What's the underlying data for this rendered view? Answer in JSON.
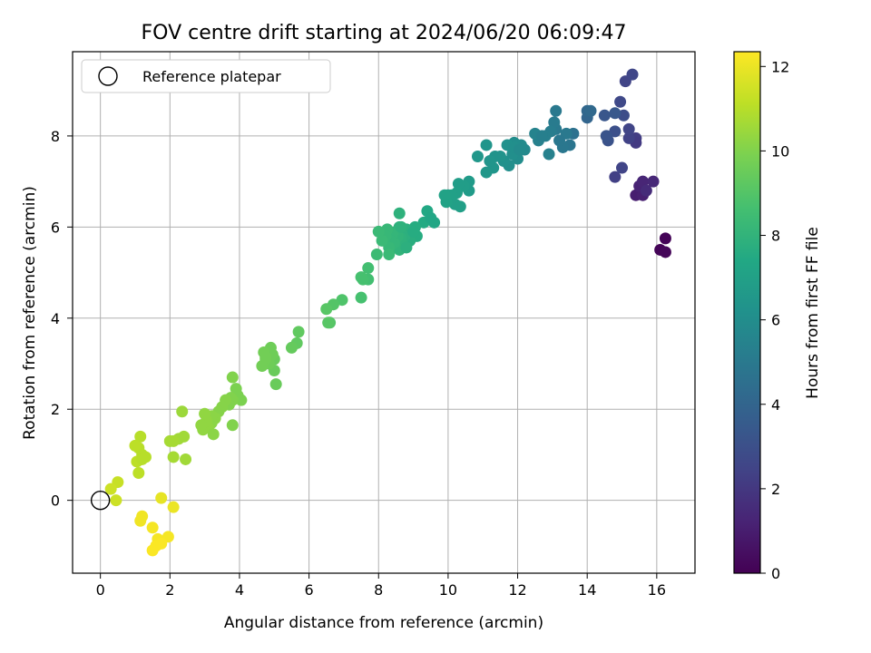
{
  "chart_data": {
    "type": "scatter",
    "title": "FOV centre drift starting at 2024/06/20 06:09:47",
    "xlabel": "Angular distance from reference (arcmin)",
    "ylabel": "Rotation from reference (arcmin)",
    "xlim": [
      -0.8,
      17.1
    ],
    "ylim": [
      -1.6,
      9.85
    ],
    "xticks": [
      0,
      2,
      4,
      6,
      8,
      10,
      12,
      14,
      16
    ],
    "yticks": [
      0,
      2,
      4,
      6,
      8
    ],
    "grid": true,
    "legend": {
      "placement": "top-left",
      "entries": [
        {
          "label": "Reference platepar",
          "marker": "open-circle"
        }
      ]
    },
    "reference_point": {
      "x": 0,
      "y": 0
    },
    "colorbar": {
      "label": "Hours from first FF file",
      "colormap": "viridis",
      "range": [
        0,
        12.35
      ],
      "ticks": [
        0,
        2,
        4,
        6,
        8,
        10,
        12
      ]
    },
    "series": [
      {
        "points": [
          {
            "x": 16.1,
            "y": 5.5,
            "c": 0.1
          },
          {
            "x": 16.25,
            "y": 5.75,
            "c": 0.1
          },
          {
            "x": 16.25,
            "y": 5.45,
            "c": 0.2
          },
          {
            "x": 15.4,
            "y": 6.7,
            "c": 1.0
          },
          {
            "x": 15.6,
            "y": 6.7,
            "c": 1.1
          },
          {
            "x": 15.5,
            "y": 6.9,
            "c": 1.2
          },
          {
            "x": 15.6,
            "y": 7.0,
            "c": 1.3
          },
          {
            "x": 15.9,
            "y": 7.0,
            "c": 1.4
          },
          {
            "x": 15.7,
            "y": 6.8,
            "c": 1.5
          },
          {
            "x": 14.8,
            "y": 7.1,
            "c": 2.3
          },
          {
            "x": 15.0,
            "y": 7.3,
            "c": 2.5
          },
          {
            "x": 15.1,
            "y": 9.2,
            "c": 2.5
          },
          {
            "x": 15.3,
            "y": 9.35,
            "c": 2.6
          },
          {
            "x": 14.95,
            "y": 8.75,
            "c": 2.7
          },
          {
            "x": 15.4,
            "y": 7.95,
            "c": 2.2
          },
          {
            "x": 15.4,
            "y": 7.85,
            "c": 2.1
          },
          {
            "x": 15.2,
            "y": 7.95,
            "c": 2.4
          },
          {
            "x": 15.2,
            "y": 8.15,
            "c": 2.5
          },
          {
            "x": 15.05,
            "y": 8.45,
            "c": 2.9
          },
          {
            "x": 14.8,
            "y": 8.1,
            "c": 3.0
          },
          {
            "x": 14.6,
            "y": 7.9,
            "c": 3.1
          },
          {
            "x": 14.55,
            "y": 8.0,
            "c": 3.2
          },
          {
            "x": 14.5,
            "y": 8.45,
            "c": 3.3
          },
          {
            "x": 14.8,
            "y": 8.5,
            "c": 3.4
          },
          {
            "x": 14.0,
            "y": 8.4,
            "c": 4.0
          },
          {
            "x": 14.0,
            "y": 8.55,
            "c": 4.1
          },
          {
            "x": 14.1,
            "y": 8.55,
            "c": 4.2
          },
          {
            "x": 13.6,
            "y": 8.05,
            "c": 4.6
          },
          {
            "x": 13.5,
            "y": 7.8,
            "c": 4.8
          },
          {
            "x": 13.3,
            "y": 7.75,
            "c": 4.9
          },
          {
            "x": 13.4,
            "y": 8.05,
            "c": 5.0
          },
          {
            "x": 13.2,
            "y": 7.9,
            "c": 4.9
          },
          {
            "x": 13.1,
            "y": 8.15,
            "c": 5.0
          },
          {
            "x": 13.05,
            "y": 8.3,
            "c": 5.1
          },
          {
            "x": 12.95,
            "y": 8.1,
            "c": 5.2
          },
          {
            "x": 13.1,
            "y": 8.55,
            "c": 5.0
          },
          {
            "x": 12.8,
            "y": 8.0,
            "c": 5.3
          },
          {
            "x": 12.6,
            "y": 7.9,
            "c": 5.4
          },
          {
            "x": 12.5,
            "y": 8.05,
            "c": 5.5
          },
          {
            "x": 12.9,
            "y": 7.6,
            "c": 5.4
          },
          {
            "x": 12.7,
            "y": 8.0,
            "c": 5.3
          },
          {
            "x": 12.2,
            "y": 7.7,
            "c": 5.8
          },
          {
            "x": 12.1,
            "y": 7.8,
            "c": 5.9
          },
          {
            "x": 12.0,
            "y": 7.5,
            "c": 6.0
          },
          {
            "x": 11.9,
            "y": 7.85,
            "c": 6.0
          },
          {
            "x": 11.85,
            "y": 7.6,
            "c": 6.1
          },
          {
            "x": 11.75,
            "y": 7.35,
            "c": 6.1
          },
          {
            "x": 11.7,
            "y": 7.8,
            "c": 6.2
          },
          {
            "x": 11.6,
            "y": 7.45,
            "c": 6.2
          },
          {
            "x": 11.5,
            "y": 7.55,
            "c": 6.3
          },
          {
            "x": 11.35,
            "y": 7.55,
            "c": 6.3
          },
          {
            "x": 11.3,
            "y": 7.3,
            "c": 6.4
          },
          {
            "x": 11.2,
            "y": 7.45,
            "c": 6.4
          },
          {
            "x": 11.1,
            "y": 7.2,
            "c": 6.5
          },
          {
            "x": 11.1,
            "y": 7.8,
            "c": 6.4
          },
          {
            "x": 10.85,
            "y": 7.55,
            "c": 6.5
          },
          {
            "x": 11.9,
            "y": 7.75,
            "c": 6.1
          },
          {
            "x": 12.05,
            "y": 7.7,
            "c": 5.9
          },
          {
            "x": 10.6,
            "y": 6.8,
            "c": 6.7
          },
          {
            "x": 10.6,
            "y": 7.0,
            "c": 6.7
          },
          {
            "x": 10.45,
            "y": 6.9,
            "c": 6.8
          },
          {
            "x": 10.3,
            "y": 6.95,
            "c": 6.8
          },
          {
            "x": 10.25,
            "y": 6.75,
            "c": 6.9
          },
          {
            "x": 10.2,
            "y": 6.5,
            "c": 6.9
          },
          {
            "x": 10.1,
            "y": 6.7,
            "c": 7.0
          },
          {
            "x": 10.0,
            "y": 6.7,
            "c": 7.0
          },
          {
            "x": 9.95,
            "y": 6.55,
            "c": 7.1
          },
          {
            "x": 9.9,
            "y": 6.7,
            "c": 7.1
          },
          {
            "x": 10.35,
            "y": 6.45,
            "c": 6.9
          },
          {
            "x": 9.6,
            "y": 6.1,
            "c": 7.3
          },
          {
            "x": 9.4,
            "y": 6.35,
            "c": 7.4
          },
          {
            "x": 9.3,
            "y": 6.1,
            "c": 7.5
          },
          {
            "x": 9.5,
            "y": 6.2,
            "c": 7.3
          },
          {
            "x": 9.1,
            "y": 5.8,
            "c": 7.6
          },
          {
            "x": 9.05,
            "y": 6.0,
            "c": 7.6
          },
          {
            "x": 8.95,
            "y": 5.85,
            "c": 7.7
          },
          {
            "x": 8.9,
            "y": 5.7,
            "c": 7.7
          },
          {
            "x": 8.8,
            "y": 5.95,
            "c": 7.8
          },
          {
            "x": 8.75,
            "y": 5.8,
            "c": 7.8
          },
          {
            "x": 8.7,
            "y": 5.6,
            "c": 7.9
          },
          {
            "x": 8.65,
            "y": 5.75,
            "c": 7.9
          },
          {
            "x": 8.6,
            "y": 6.0,
            "c": 7.8
          },
          {
            "x": 8.6,
            "y": 5.5,
            "c": 8.0
          },
          {
            "x": 8.55,
            "y": 5.8,
            "c": 8.0
          },
          {
            "x": 8.5,
            "y": 5.9,
            "c": 8.0
          },
          {
            "x": 8.45,
            "y": 5.65,
            "c": 8.1
          },
          {
            "x": 8.4,
            "y": 5.85,
            "c": 8.1
          },
          {
            "x": 8.35,
            "y": 5.7,
            "c": 8.1
          },
          {
            "x": 8.3,
            "y": 5.55,
            "c": 8.2
          },
          {
            "x": 8.25,
            "y": 5.95,
            "c": 8.2
          },
          {
            "x": 8.2,
            "y": 5.8,
            "c": 8.2
          },
          {
            "x": 8.1,
            "y": 5.7,
            "c": 8.3
          },
          {
            "x": 8.0,
            "y": 5.9,
            "c": 8.3
          },
          {
            "x": 8.3,
            "y": 5.4,
            "c": 8.3
          },
          {
            "x": 7.95,
            "y": 5.4,
            "c": 8.4
          },
          {
            "x": 8.6,
            "y": 6.3,
            "c": 7.9
          },
          {
            "x": 8.8,
            "y": 5.55,
            "c": 7.8
          },
          {
            "x": 9.0,
            "y": 5.9,
            "c": 7.6
          },
          {
            "x": 8.65,
            "y": 6.0,
            "c": 7.9
          },
          {
            "x": 7.7,
            "y": 4.85,
            "c": 8.6
          },
          {
            "x": 7.7,
            "y": 5.1,
            "c": 8.6
          },
          {
            "x": 7.55,
            "y": 4.85,
            "c": 8.7
          },
          {
            "x": 7.5,
            "y": 4.9,
            "c": 8.7
          },
          {
            "x": 7.5,
            "y": 4.45,
            "c": 8.7
          },
          {
            "x": 6.95,
            "y": 4.4,
            "c": 8.9
          },
          {
            "x": 6.7,
            "y": 4.3,
            "c": 9.0
          },
          {
            "x": 6.6,
            "y": 3.9,
            "c": 9.0
          },
          {
            "x": 6.5,
            "y": 4.2,
            "c": 9.1
          },
          {
            "x": 6.55,
            "y": 3.9,
            "c": 9.1
          },
          {
            "x": 5.7,
            "y": 3.7,
            "c": 9.3
          },
          {
            "x": 5.65,
            "y": 3.45,
            "c": 9.3
          },
          {
            "x": 5.5,
            "y": 3.35,
            "c": 9.4
          },
          {
            "x": 5.05,
            "y": 2.55,
            "c": 9.5
          },
          {
            "x": 5.0,
            "y": 2.85,
            "c": 9.5
          },
          {
            "x": 5.0,
            "y": 3.1,
            "c": 9.5
          },
          {
            "x": 4.95,
            "y": 3.2,
            "c": 9.6
          },
          {
            "x": 4.9,
            "y": 3.35,
            "c": 9.6
          },
          {
            "x": 4.85,
            "y": 3.0,
            "c": 9.6
          },
          {
            "x": 4.75,
            "y": 3.1,
            "c": 9.7
          },
          {
            "x": 4.7,
            "y": 3.25,
            "c": 9.7
          },
          {
            "x": 4.65,
            "y": 2.95,
            "c": 9.7
          },
          {
            "x": 4.75,
            "y": 3.15,
            "c": 9.7
          },
          {
            "x": 4.05,
            "y": 2.2,
            "c": 9.9
          },
          {
            "x": 3.95,
            "y": 2.3,
            "c": 9.9
          },
          {
            "x": 3.9,
            "y": 2.45,
            "c": 9.9
          },
          {
            "x": 3.8,
            "y": 2.7,
            "c": 10.0
          },
          {
            "x": 3.8,
            "y": 2.2,
            "c": 10.0
          },
          {
            "x": 3.75,
            "y": 2.25,
            "c": 10.0
          },
          {
            "x": 3.7,
            "y": 2.1,
            "c": 10.0
          },
          {
            "x": 3.6,
            "y": 2.2,
            "c": 10.1
          },
          {
            "x": 3.5,
            "y": 2.05,
            "c": 10.1
          },
          {
            "x": 3.4,
            "y": 1.95,
            "c": 10.1
          },
          {
            "x": 3.3,
            "y": 1.8,
            "c": 10.2
          },
          {
            "x": 3.2,
            "y": 1.7,
            "c": 10.2
          },
          {
            "x": 3.2,
            "y": 1.85,
            "c": 10.2
          },
          {
            "x": 3.1,
            "y": 1.6,
            "c": 10.3
          },
          {
            "x": 3.05,
            "y": 1.75,
            "c": 10.3
          },
          {
            "x": 3.0,
            "y": 1.9,
            "c": 10.3
          },
          {
            "x": 2.95,
            "y": 1.55,
            "c": 10.3
          },
          {
            "x": 2.9,
            "y": 1.65,
            "c": 10.3
          },
          {
            "x": 3.25,
            "y": 1.45,
            "c": 10.2
          },
          {
            "x": 3.8,
            "y": 1.65,
            "c": 10.0
          },
          {
            "x": 2.35,
            "y": 1.95,
            "c": 10.5
          },
          {
            "x": 2.4,
            "y": 1.4,
            "c": 10.6
          },
          {
            "x": 2.25,
            "y": 1.35,
            "c": 10.6
          },
          {
            "x": 2.0,
            "y": 1.3,
            "c": 10.7
          },
          {
            "x": 2.1,
            "y": 1.3,
            "c": 10.7
          },
          {
            "x": 2.45,
            "y": 0.9,
            "c": 10.6
          },
          {
            "x": 2.1,
            "y": 0.95,
            "c": 10.7
          },
          {
            "x": 1.3,
            "y": 0.95,
            "c": 11.0
          },
          {
            "x": 1.2,
            "y": 1.0,
            "c": 11.0
          },
          {
            "x": 1.15,
            "y": 1.4,
            "c": 11.0
          },
          {
            "x": 1.1,
            "y": 1.15,
            "c": 11.0
          },
          {
            "x": 1.05,
            "y": 0.85,
            "c": 11.1
          },
          {
            "x": 1.0,
            "y": 1.2,
            "c": 11.1
          },
          {
            "x": 1.1,
            "y": 0.6,
            "c": 11.1
          },
          {
            "x": 1.2,
            "y": 0.9,
            "c": 11.0
          },
          {
            "x": 0.5,
            "y": 0.4,
            "c": 11.3
          },
          {
            "x": 0.3,
            "y": 0.25,
            "c": 11.4
          },
          {
            "x": 0.45,
            "y": 0.0,
            "c": 11.4
          },
          {
            "x": 1.75,
            "y": 0.05,
            "c": 11.9
          },
          {
            "x": 2.1,
            "y": -0.15,
            "c": 12.0
          },
          {
            "x": 1.2,
            "y": -0.35,
            "c": 12.1
          },
          {
            "x": 1.15,
            "y": -0.45,
            "c": 12.1
          },
          {
            "x": 1.5,
            "y": -0.6,
            "c": 12.2
          },
          {
            "x": 1.65,
            "y": -0.85,
            "c": 12.2
          },
          {
            "x": 1.95,
            "y": -0.8,
            "c": 12.2
          },
          {
            "x": 1.6,
            "y": -1.0,
            "c": 12.3
          },
          {
            "x": 1.5,
            "y": -1.1,
            "c": 12.3
          },
          {
            "x": 1.75,
            "y": -0.95,
            "c": 12.3
          }
        ]
      }
    ]
  }
}
